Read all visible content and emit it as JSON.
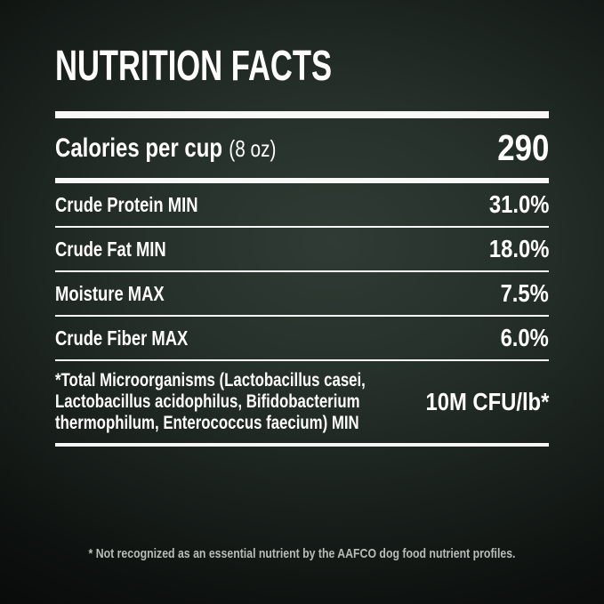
{
  "label": {
    "title": "NUTRITION FACTS",
    "calories": {
      "label": "Calories per cup",
      "serving": "(8 oz)",
      "value": "290"
    },
    "nutrients": [
      {
        "name": "Crude Protein MIN",
        "value": "31.0%"
      },
      {
        "name": "Crude Fat MIN",
        "value": "18.0%"
      },
      {
        "name": "Moisture MAX",
        "value": "7.5%"
      },
      {
        "name": "Crude Fiber MAX",
        "value": "6.0%"
      },
      {
        "name": "*Total Microorganisms (Lactobacillus casei, Lactobacillus acidophilus, Bifidobacterium thermophilum, Enterococcus faecium) MIN",
        "value": "10M CFU/lb*"
      }
    ],
    "footnote": "* Not recognized as an essential nutrient by the AAFCO dog food nutrient profiles."
  },
  "colors": {
    "text": "#ffffff",
    "footnote_text": "#b9bdba",
    "divider": "#f7f8f7",
    "background_center": "#2f3b34",
    "background_edge": "#050706"
  }
}
